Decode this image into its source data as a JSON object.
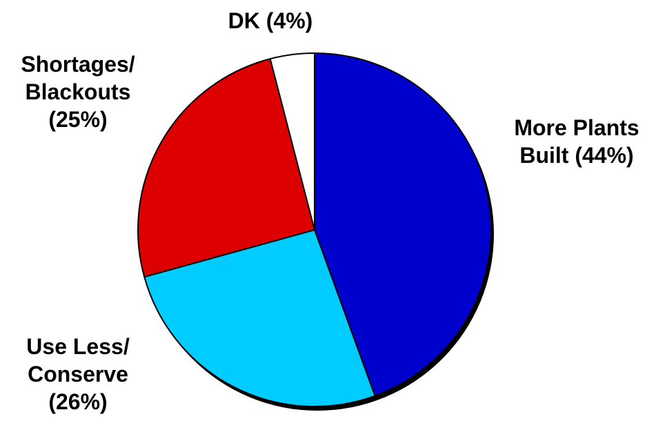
{
  "chart_data": {
    "type": "pie",
    "title": "",
    "start": "12 o'clock",
    "direction": "clockwise",
    "legend": "none",
    "slices": [
      {
        "label_lines": [
          "More Plants",
          "Built (44%)"
        ],
        "value": 44,
        "color": "#0000CC"
      },
      {
        "label_lines": [
          "Use Less/",
          "Conserve",
          "(26%)"
        ],
        "value": 26,
        "color": "#00CCFF"
      },
      {
        "label_lines": [
          "Shortages/",
          "Blackouts",
          "(25%)"
        ],
        "value": 25,
        "color": "#DD0000"
      },
      {
        "label_lines": [
          "DK (4%)"
        ],
        "value": 4,
        "color": "#FFFFFF"
      }
    ]
  }
}
